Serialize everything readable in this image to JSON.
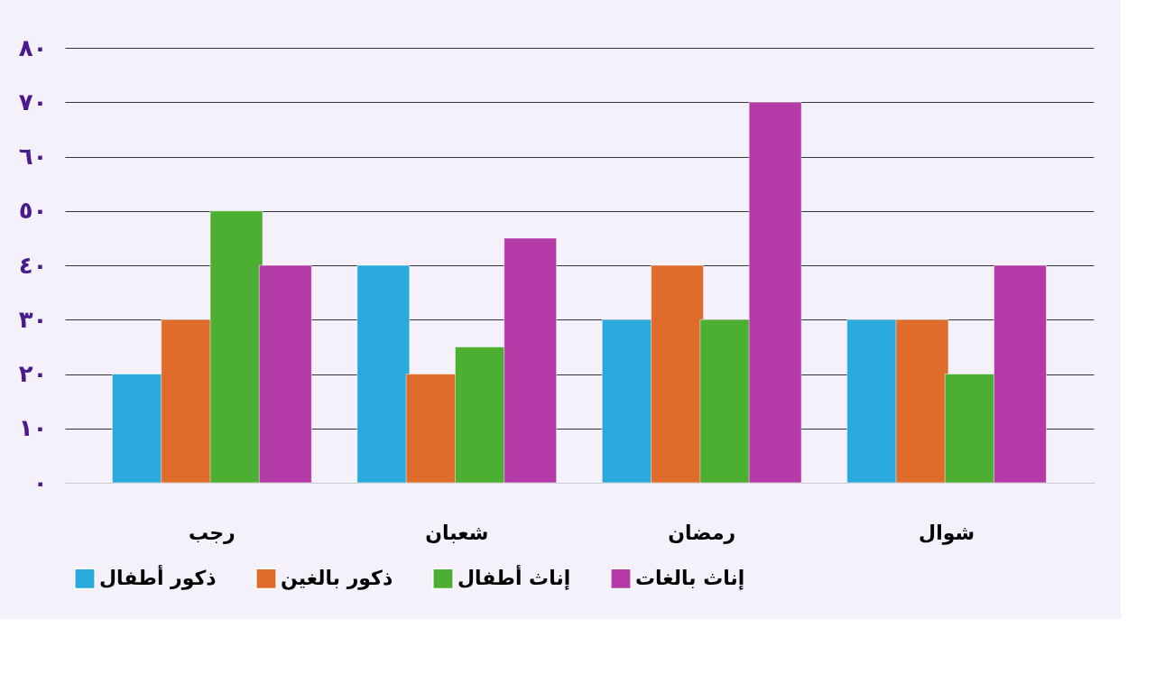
{
  "chart_data": {
    "type": "bar",
    "categories": [
      "رجب",
      "شعبان",
      "رمضان",
      "شوال"
    ],
    "series": [
      {
        "name": "ذكور أطفال",
        "color": "#29a9dc",
        "values": [
          20,
          40,
          30,
          30
        ]
      },
      {
        "name": "ذكور بالغين",
        "color": "#e06c2c",
        "values": [
          30,
          20,
          40,
          30
        ]
      },
      {
        "name": "إناث أطفال",
        "color": "#4caf32",
        "values": [
          50,
          25,
          30,
          20
        ]
      },
      {
        "name": "إناث بالغات",
        "color": "#b43aa8",
        "values": [
          40,
          45,
          70,
          40
        ]
      }
    ],
    "ylim": [
      0,
      80
    ],
    "yticks": [
      {
        "value": 0,
        "label": "٠"
      },
      {
        "value": 10,
        "label": "١٠"
      },
      {
        "value": 20,
        "label": "٢٠"
      },
      {
        "value": 30,
        "label": "٣٠"
      },
      {
        "value": 40,
        "label": "٤٠"
      },
      {
        "value": 50,
        "label": "٥٠"
      },
      {
        "value": 60,
        "label": "٦٠"
      },
      {
        "value": 70,
        "label": "٧٠"
      },
      {
        "value": 80,
        "label": "٨٠"
      }
    ],
    "grid": "y",
    "legend": "bottom"
  }
}
